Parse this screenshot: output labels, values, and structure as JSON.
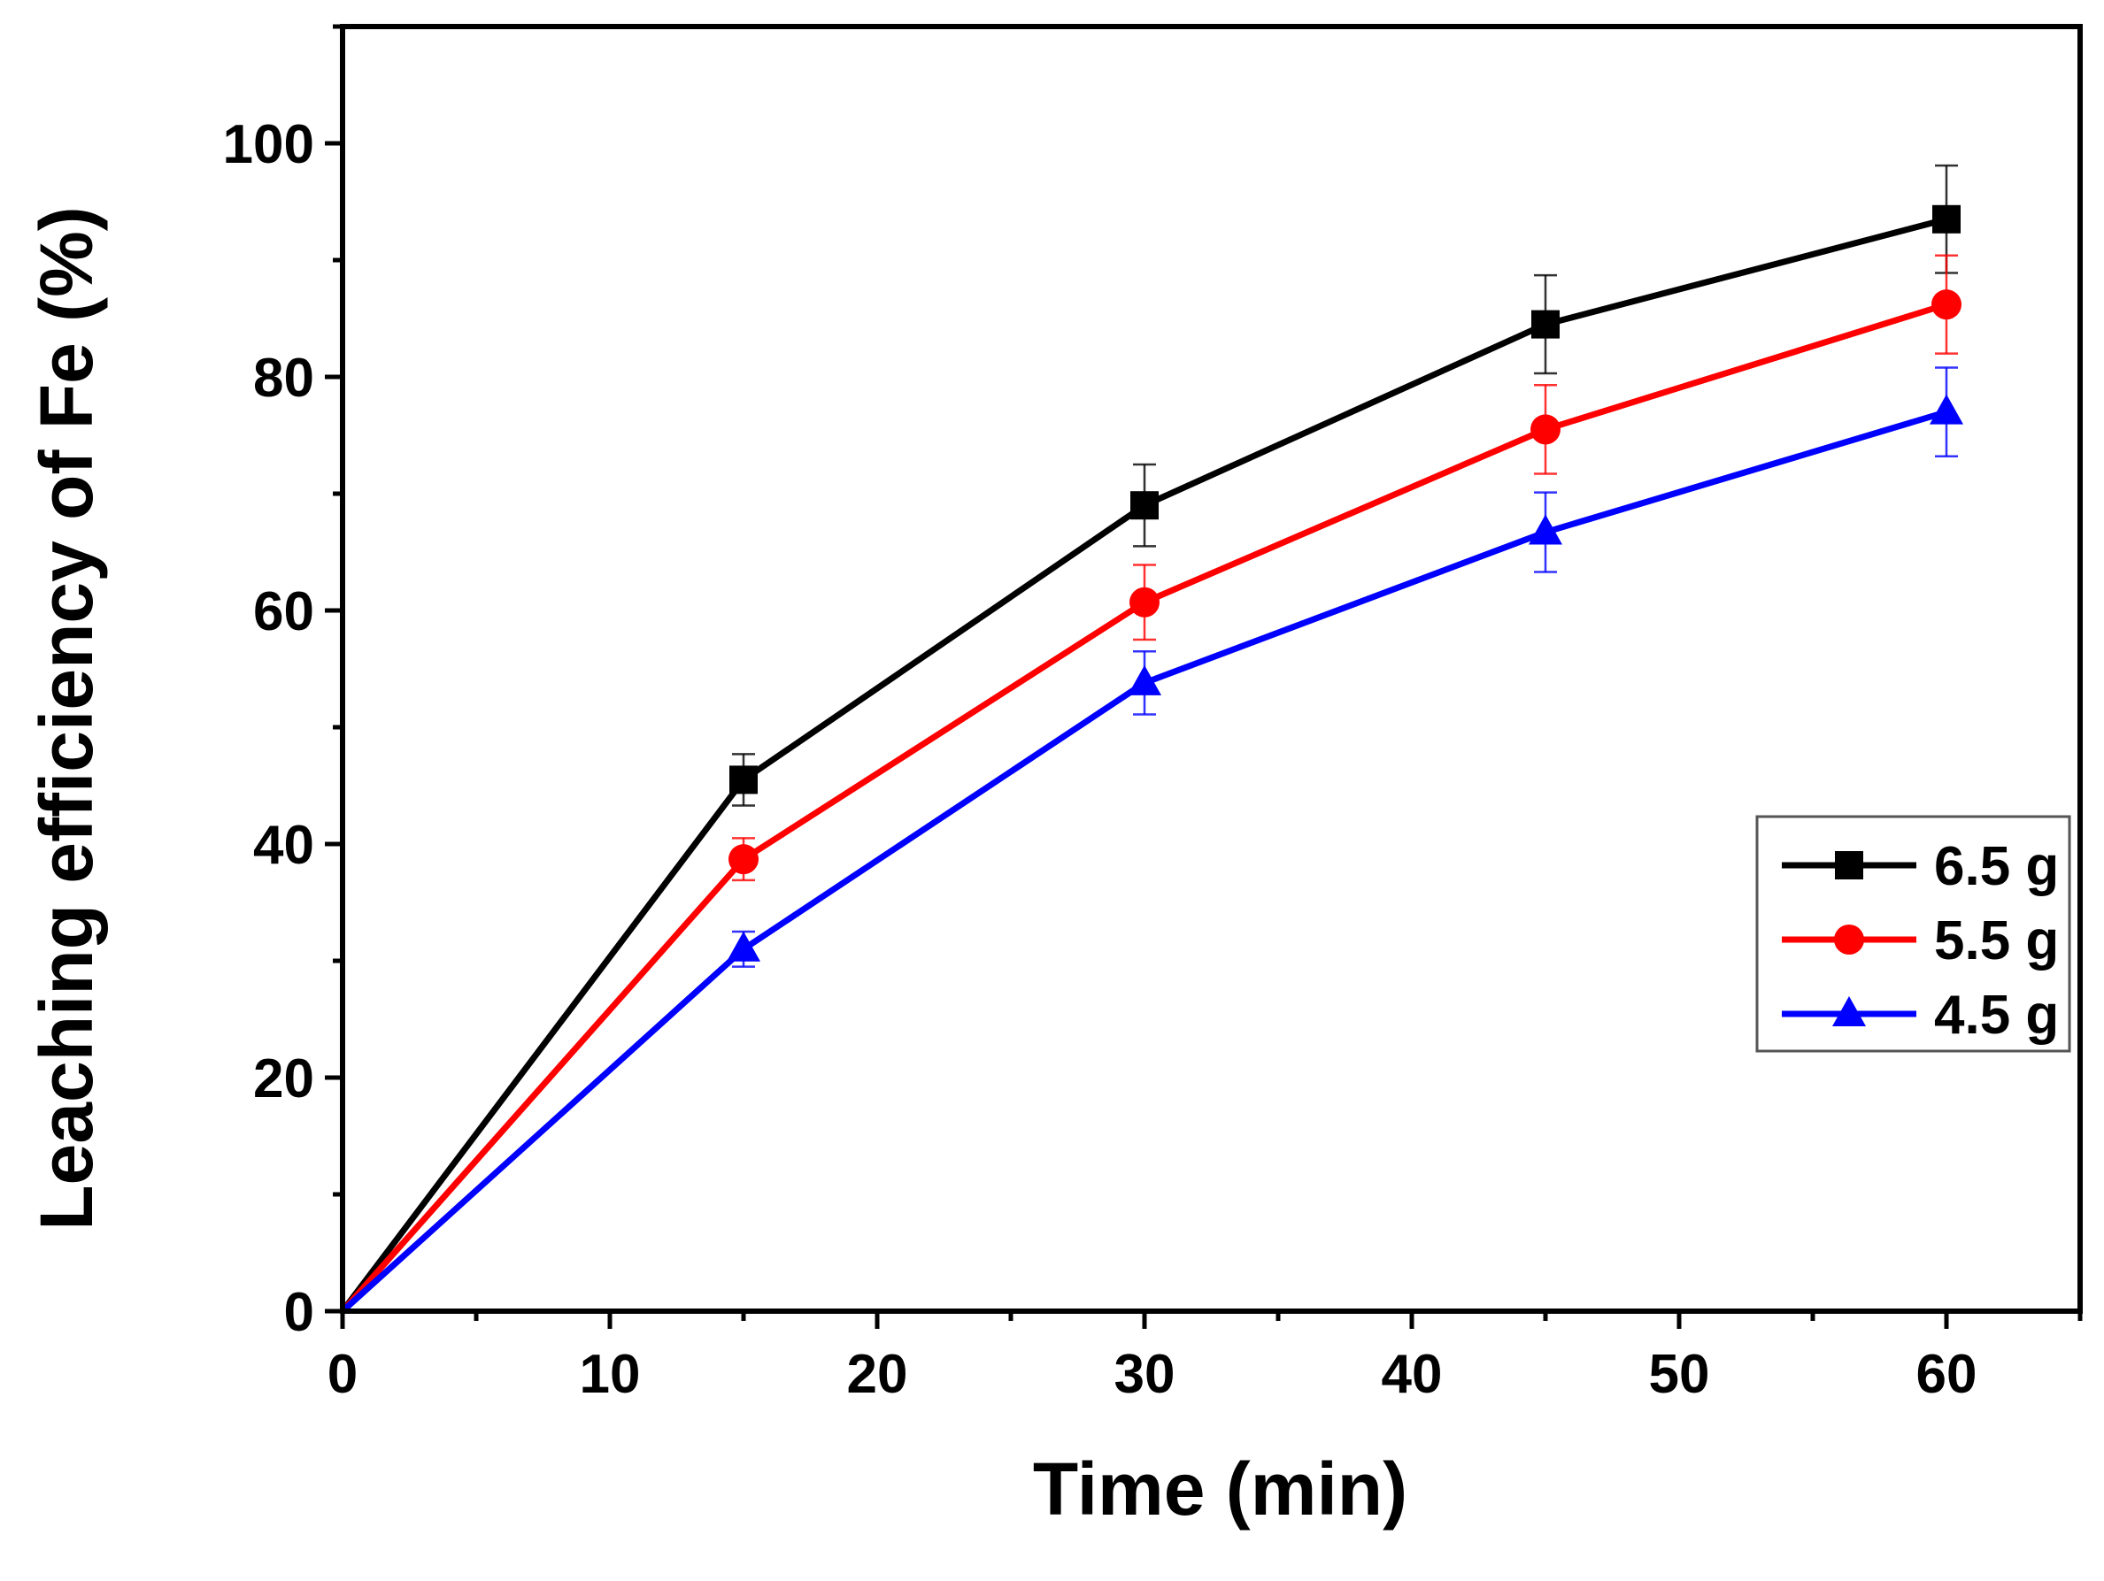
{
  "chart_data": {
    "type": "line",
    "title": "",
    "xlabel": "Time (min)",
    "ylabel": "Leaching efficiency of Fe (%)",
    "xlim": [
      0,
      65
    ],
    "ylim": [
      0,
      110
    ],
    "xticks": [
      0,
      10,
      20,
      30,
      40,
      50,
      60
    ],
    "yticks": [
      0,
      20,
      40,
      60,
      80,
      100
    ],
    "x": [
      0,
      15,
      30,
      45,
      60
    ],
    "legend_position": "right",
    "series": [
      {
        "name": "6.5 g",
        "marker": "square",
        "color": "#000000",
        "values": [
          0,
          45.5,
          69,
          84.5,
          93.5
        ],
        "errors": [
          0,
          2.2,
          3.5,
          4.2,
          4.6
        ]
      },
      {
        "name": "5.5 g",
        "marker": "circle",
        "color": "#ff0000",
        "values": [
          0,
          38.7,
          60.7,
          75.5,
          86.2
        ],
        "errors": [
          0,
          1.8,
          3.2,
          3.8,
          4.2
        ]
      },
      {
        "name": "4.5 g",
        "marker": "triangle",
        "color": "#0000ff",
        "values": [
          0,
          31,
          53.8,
          66.7,
          77
        ],
        "errors": [
          0,
          1.5,
          2.7,
          3.4,
          3.8
        ]
      }
    ]
  }
}
